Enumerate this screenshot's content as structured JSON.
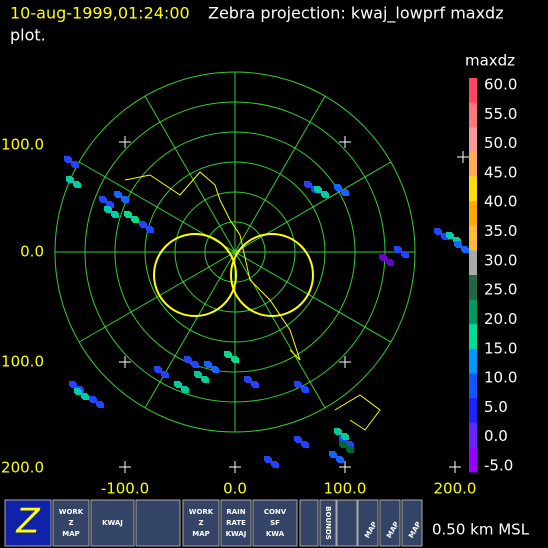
{
  "header": {
    "timestamp": "10-aug-1999,01:24:00",
    "title_lines": [
      "Zebra projection: kwaj_lowprf maxdz",
      "plot."
    ]
  },
  "y_axis_labels": [
    "100.0",
    "0.0",
    "100.0",
    "200.0"
  ],
  "x_axis_labels": [
    "-100.0",
    "0.0",
    "100.0",
    "200.0"
  ],
  "colorbar": {
    "title": "maxdz",
    "labels": [
      "60.0",
      "55.0",
      "50.0",
      "45.0",
      "40.0",
      "35.0",
      "30.0",
      "25.0",
      "20.0",
      "15.0",
      "10.0",
      "5.0",
      "0.0",
      "-5.0"
    ]
  },
  "toolbar": [
    {
      "lines": [
        "Z"
      ]
    },
    {
      "lines": [
        "WORK",
        "Z",
        "MAP"
      ]
    },
    {
      "lines": [
        "KWAJ"
      ]
    },
    {
      "lines": []
    },
    {
      "lines": [
        "WORK",
        "Z",
        "MAP"
      ]
    },
    {
      "lines": [
        "RAIN",
        "RATE",
        "KWAJ"
      ]
    },
    {
      "lines": [
        "CONV",
        "SF",
        "KWA"
      ]
    },
    {
      "lines": []
    },
    {
      "lines": [
        "BOUNDS"
      ]
    },
    {
      "lines": []
    },
    {
      "lines": [
        "MAP"
      ]
    },
    {
      "lines": [
        "MAP"
      ]
    },
    {
      "lines": [
        "MAP"
      ]
    }
  ],
  "status": "0.50 km MSL"
}
